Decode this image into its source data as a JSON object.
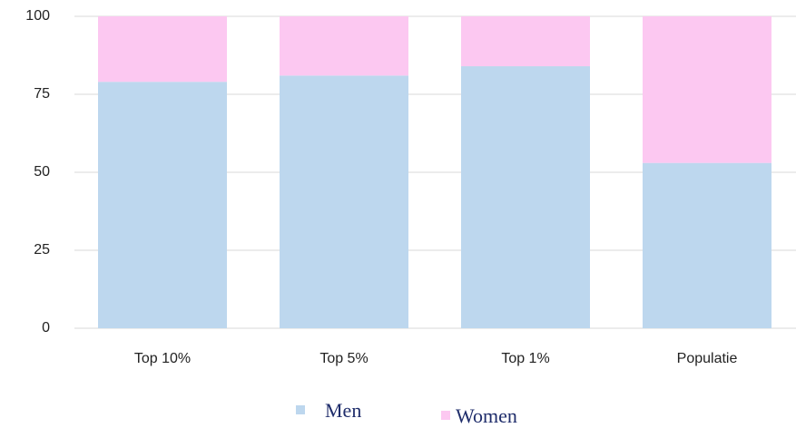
{
  "chart_data": {
    "type": "stacked-bar",
    "categories": [
      "Top 10%",
      "Top 5%",
      "Top 1%",
      "Populatie"
    ],
    "series": [
      {
        "name": "Men",
        "color": "#bdd7ee",
        "values": [
          79,
          81,
          84,
          53
        ]
      },
      {
        "name": "Women",
        "color": "#fcc8f1",
        "values": [
          21,
          19,
          16,
          47
        ]
      }
    ],
    "ylim": [
      0,
      100
    ],
    "yticks": [
      0,
      25,
      50,
      75,
      100
    ],
    "grid": true,
    "legend": "bottom"
  }
}
